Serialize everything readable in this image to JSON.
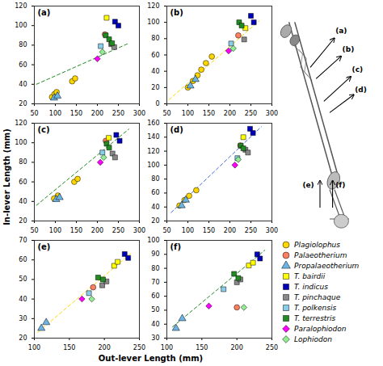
{
  "chart_data": [
    {
      "type": "scatter",
      "title": "(a)",
      "xlabel": "Out-lever Length (mm)",
      "ylabel": "In-lever Length (mm)",
      "xlim": [
        50,
        300
      ],
      "ylim": [
        20,
        120
      ],
      "xticks": [
        50,
        100,
        150,
        200,
        250,
        300
      ],
      "yticks": [
        20,
        40,
        60,
        80,
        100,
        120
      ],
      "series": [
        {
          "type": "line",
          "color": "#228B22",
          "line_style": "dashed",
          "x": [
            55,
            275
          ],
          "values": [
            40,
            82
          ]
        },
        {
          "name": "Plagiolophus",
          "color": "#FFD700",
          "marker": "circle",
          "x": [
            92,
            98,
            103,
            140,
            147
          ],
          "values": [
            27,
            30,
            32,
            43,
            46
          ]
        },
        {
          "name": "Palaeotherium",
          "color": "#FF8060",
          "marker": "circle",
          "x": [
            218
          ],
          "values": [
            91
          ]
        },
        {
          "name": "Propalaeotherium",
          "color": "#6CB4E4",
          "marker": "triangle",
          "x": [
            97,
            105
          ],
          "values": [
            26,
            28
          ]
        },
        {
          "name": "T. bairdii",
          "color": "#FFFF00",
          "marker": "square",
          "x": [
            222
          ],
          "values": [
            108
          ]
        },
        {
          "name": "T. indicus",
          "color": "#0000BB",
          "marker": "square",
          "x": [
            242,
            250
          ],
          "values": [
            104,
            100
          ]
        },
        {
          "name": "T. pinchaque",
          "color": "#888888",
          "marker": "square",
          "x": [
            233,
            240
          ],
          "values": [
            81,
            78
          ]
        },
        {
          "name": "T. polkensis",
          "color": "#87CEEB",
          "marker": "square",
          "x": [
            208
          ],
          "values": [
            79
          ]
        },
        {
          "name": "T. terrestris",
          "color": "#228B22",
          "marker": "square",
          "x": [
            220,
            228,
            235
          ],
          "values": [
            90,
            86,
            82
          ]
        },
        {
          "name": "Paralophiodon",
          "color": "#FF00FF",
          "marker": "diamond",
          "x": [
            200
          ],
          "values": [
            66
          ]
        },
        {
          "name": "Lophiodon",
          "color": "#90EE90",
          "marker": "diamond",
          "x": [
            212
          ],
          "values": [
            73
          ]
        }
      ]
    },
    {
      "type": "scatter",
      "title": "(b)",
      "xlabel": "Out-lever Length (mm)",
      "ylabel": "In-lever Length (mm)",
      "xlim": [
        50,
        300
      ],
      "ylim": [
        0,
        120
      ],
      "xticks": [
        50,
        100,
        150,
        200,
        250,
        300
      ],
      "yticks": [
        0,
        20,
        40,
        60,
        80,
        100,
        120
      ],
      "series": [
        {
          "type": "line",
          "color": "#FFD700",
          "line_style": "dashed",
          "x": [
            55,
            270
          ],
          "values": [
            5,
            102
          ]
        },
        {
          "name": "Plagiolophus",
          "color": "#FFD700",
          "marker": "circle",
          "x": [
            100,
            112,
            123,
            132,
            143,
            157
          ],
          "values": [
            20,
            28,
            35,
            42,
            50,
            58
          ]
        },
        {
          "name": "Palaeotherium",
          "color": "#FF8060",
          "marker": "circle",
          "x": [
            220
          ],
          "values": [
            84
          ]
        },
        {
          "name": "Propalaeotherium",
          "color": "#6CB4E4",
          "marker": "triangle",
          "x": [
            106,
            118
          ],
          "values": [
            22,
            30
          ]
        },
        {
          "name": "T. bairdii",
          "color": "#FFFF00",
          "marker": "square",
          "x": [
            237
          ],
          "values": [
            93
          ]
        },
        {
          "name": "T. indicus",
          "color": "#0000BB",
          "marker": "square",
          "x": [
            250,
            257
          ],
          "values": [
            108,
            100
          ]
        },
        {
          "name": "T. pinchaque",
          "color": "#888888",
          "marker": "square",
          "x": [
            234
          ],
          "values": [
            79
          ]
        },
        {
          "name": "T. polkensis",
          "color": "#87CEEB",
          "marker": "square",
          "x": [
            203
          ],
          "values": [
            74
          ]
        },
        {
          "name": "T. terrestris",
          "color": "#228B22",
          "marker": "square",
          "x": [
            222,
            228
          ],
          "values": [
            100,
            96
          ]
        },
        {
          "name": "Paralophiodon",
          "color": "#FF00FF",
          "marker": "diamond",
          "x": [
            197
          ],
          "values": [
            65
          ]
        },
        {
          "name": "Lophiodon",
          "color": "#90EE90",
          "marker": "diamond",
          "x": [
            208
          ],
          "values": [
            68
          ]
        }
      ]
    },
    {
      "type": "scatter",
      "title": "(c)",
      "xlabel": "Out-lever Length (mm)",
      "ylabel": "In-lever Length (mm)",
      "xlim": [
        50,
        300
      ],
      "ylim": [
        20,
        120
      ],
      "xticks": [
        50,
        100,
        150,
        200,
        250,
        300
      ],
      "yticks": [
        20,
        40,
        60,
        80,
        100,
        120
      ],
      "series": [
        {
          "type": "line",
          "color": "#228B22",
          "line_style": "dashed",
          "x": [
            55,
            275
          ],
          "values": [
            36,
            114
          ]
        },
        {
          "name": "Plagiolophus",
          "color": "#FFD700",
          "marker": "circle",
          "x": [
            97,
            106,
            145,
            153
          ],
          "values": [
            43,
            46,
            60,
            63
          ]
        },
        {
          "name": "Palaeotherium",
          "color": "#FF8060",
          "marker": "circle",
          "x": [
            220
          ],
          "values": [
            102
          ]
        },
        {
          "name": "Propalaeotherium",
          "color": "#6CB4E4",
          "marker": "triangle",
          "x": [
            102,
            110
          ],
          "values": [
            42,
            44
          ]
        },
        {
          "name": "T. bairdii",
          "color": "#FFFF00",
          "marker": "square",
          "x": [
            227
          ],
          "values": [
            105
          ]
        },
        {
          "name": "T. indicus",
          "color": "#0000BB",
          "marker": "square",
          "x": [
            245,
            253
          ],
          "values": [
            108,
            102
          ]
        },
        {
          "name": "T. pinchaque",
          "color": "#888888",
          "marker": "square",
          "x": [
            236,
            242
          ],
          "values": [
            89,
            85
          ]
        },
        {
          "name": "T. polkensis",
          "color": "#87CEEB",
          "marker": "square",
          "x": [
            212
          ],
          "values": [
            90
          ]
        },
        {
          "name": "T. terrestris",
          "color": "#228B22",
          "marker": "square",
          "x": [
            222,
            228
          ],
          "values": [
            99,
            95
          ]
        },
        {
          "name": "Paralophiodon",
          "color": "#FF00FF",
          "marker": "diamond",
          "x": [
            207
          ],
          "values": [
            80
          ]
        },
        {
          "name": "Lophiodon",
          "color": "#90EE90",
          "marker": "diamond",
          "x": [
            215
          ],
          "values": [
            85
          ]
        }
      ]
    },
    {
      "type": "scatter",
      "title": "(d)",
      "xlabel": "Out-lever Length (mm)",
      "ylabel": "In-lever Length (mm)",
      "xlim": [
        50,
        300
      ],
      "ylim": [
        20,
        160
      ],
      "xticks": [
        50,
        100,
        150,
        200,
        250,
        300
      ],
      "yticks": [
        20,
        40,
        60,
        80,
        100,
        120,
        140,
        160
      ],
      "series": [
        {
          "type": "line",
          "color": "#4169E1",
          "line_style": "dashed",
          "x": [
            60,
            275
          ],
          "values": [
            32,
            155
          ]
        },
        {
          "name": "Plagiolophus",
          "color": "#FFD700",
          "marker": "circle",
          "x": [
            80,
            92,
            103,
            120
          ],
          "values": [
            42,
            50,
            56,
            64
          ]
        },
        {
          "name": "Palaeotherium",
          "color": "#FF8060",
          "marker": "circle",
          "x": [
            225
          ],
          "values": [
            128
          ]
        },
        {
          "name": "Propalaeotherium",
          "color": "#6CB4E4",
          "marker": "triangle",
          "x": [
            85,
            95
          ],
          "values": [
            42,
            50
          ]
        },
        {
          "name": "T. bairdii",
          "color": "#FFFF00",
          "marker": "square",
          "x": [
            232
          ],
          "values": [
            140
          ]
        },
        {
          "name": "T. indicus",
          "color": "#0000BB",
          "marker": "square",
          "x": [
            248,
            255
          ],
          "values": [
            152,
            146
          ]
        },
        {
          "name": "T. pinchaque",
          "color": "#888888",
          "marker": "square",
          "x": [
            237,
            243
          ],
          "values": [
            122,
            118
          ]
        },
        {
          "name": "T. polkensis",
          "color": "#87CEEB",
          "marker": "square",
          "x": [
            218
          ],
          "values": [
            110
          ]
        },
        {
          "name": "T. terrestris",
          "color": "#228B22",
          "marker": "square",
          "x": [
            226,
            232
          ],
          "values": [
            128,
            124
          ]
        },
        {
          "name": "Paralophiodon",
          "color": "#FF00FF",
          "marker": "diamond",
          "x": [
            212
          ],
          "values": [
            100
          ]
        },
        {
          "name": "Lophiodon",
          "color": "#90EE90",
          "marker": "diamond",
          "x": [
            220
          ],
          "values": [
            108
          ]
        }
      ]
    },
    {
      "type": "scatter",
      "title": "(e)",
      "xlabel": "Out-lever Length (mm)",
      "ylabel": "In-lever Length (mm)",
      "xlim": [
        100,
        250
      ],
      "ylim": [
        20,
        70
      ],
      "xticks": [
        100,
        150,
        200,
        250
      ],
      "yticks": [
        20,
        30,
        40,
        50,
        60,
        70
      ],
      "series": [
        {
          "type": "line",
          "color": "#FFD700",
          "line_style": "dashed",
          "x": [
            105,
            240
          ],
          "values": [
            23,
            64
          ]
        },
        {
          "name": "Palaeotherium",
          "color": "#FF8060",
          "marker": "circle",
          "x": [
            184
          ],
          "values": [
            46
          ]
        },
        {
          "name": "Propalaeotherium",
          "color": "#6CB4E4",
          "marker": "triangle",
          "x": [
            110,
            117
          ],
          "values": [
            25,
            28
          ]
        },
        {
          "name": "T. bairdii",
          "color": "#FFFF00",
          "marker": "square",
          "x": [
            214,
            219
          ],
          "values": [
            57,
            59
          ]
        },
        {
          "name": "T. indicus",
          "color": "#0000BB",
          "marker": "square",
          "x": [
            229,
            234
          ],
          "values": [
            63,
            61
          ]
        },
        {
          "name": "T. pinchaque",
          "color": "#888888",
          "marker": "square",
          "x": [
            197,
            203
          ],
          "values": [
            47,
            49
          ]
        },
        {
          "name": "T. polkensis",
          "color": "#87CEEB",
          "marker": "square",
          "x": [
            178
          ],
          "values": [
            43
          ]
        },
        {
          "name": "T. terrestris",
          "color": "#228B22",
          "marker": "square",
          "x": [
            191,
            198
          ],
          "values": [
            51,
            50
          ]
        },
        {
          "name": "Paralophiodon",
          "color": "#FF00FF",
          "marker": "diamond",
          "x": [
            168
          ],
          "values": [
            40
          ]
        },
        {
          "name": "Lophiodon",
          "color": "#90EE90",
          "marker": "diamond",
          "x": [
            182
          ],
          "values": [
            40
          ]
        }
      ]
    },
    {
      "type": "scatter",
      "title": "(f)",
      "xlabel": "Out-lever Length (mm)",
      "ylabel": "In-lever Length (mm)",
      "xlim": [
        100,
        250
      ],
      "ylim": [
        30,
        100
      ],
      "xticks": [
        100,
        150,
        200,
        250
      ],
      "yticks": [
        30,
        40,
        50,
        60,
        70,
        80,
        90,
        100
      ],
      "series": [
        {
          "type": "line",
          "color": "#228B22",
          "line_style": "dashed",
          "x": [
            108,
            240
          ],
          "values": [
            38,
            93
          ]
        },
        {
          "name": "Palaeotherium",
          "color": "#FF8060",
          "marker": "circle",
          "x": [
            200
          ],
          "values": [
            52
          ]
        },
        {
          "name": "Propalaeotherium",
          "color": "#6CB4E4",
          "marker": "triangle",
          "x": [
            113,
            122
          ],
          "values": [
            37,
            44
          ]
        },
        {
          "name": "T. bairdii",
          "color": "#FFFF00",
          "marker": "square",
          "x": [
            217,
            223
          ],
          "values": [
            82,
            84
          ]
        },
        {
          "name": "T. indicus",
          "color": "#0000BB",
          "marker": "square",
          "x": [
            229,
            233
          ],
          "values": [
            90,
            87
          ]
        },
        {
          "name": "T. pinchaque",
          "color": "#888888",
          "marker": "square",
          "x": [
            200,
            205
          ],
          "values": [
            70,
            72
          ]
        },
        {
          "name": "T. polkensis",
          "color": "#87CEEB",
          "marker": "square",
          "x": [
            181
          ],
          "values": [
            65
          ]
        },
        {
          "name": "T. terrestris",
          "color": "#228B22",
          "marker": "square",
          "x": [
            196,
            202
          ],
          "values": [
            76,
            73
          ]
        },
        {
          "name": "Paralophiodon",
          "color": "#FF00FF",
          "marker": "diamond",
          "x": [
            160
          ],
          "values": [
            53
          ]
        },
        {
          "name": "Lophiodon",
          "color": "#90EE90",
          "marker": "diamond",
          "x": [
            210
          ],
          "values": [
            52
          ]
        }
      ]
    }
  ]
}
